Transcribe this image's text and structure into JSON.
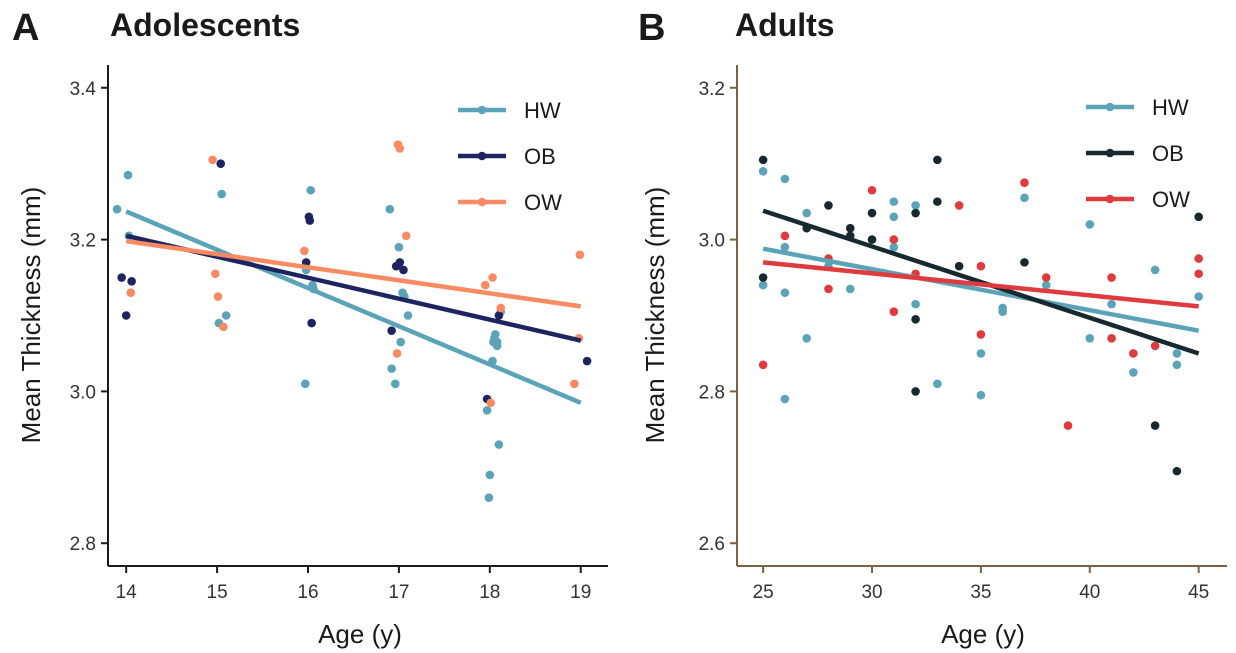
{
  "chart_data": [
    {
      "panel_letter": "A",
      "title": "Adolescents",
      "type": "scatter",
      "xlabel": "Age (y)",
      "ylabel": "Mean Thickness (mm)",
      "xlim": [
        13.8,
        19.3
      ],
      "ylim": [
        2.77,
        3.43
      ],
      "xticks": [
        "14",
        "15",
        "16",
        "17",
        "18",
        "19"
      ],
      "yticks": [
        "2.8",
        "3.0",
        "3.2",
        "3.4"
      ],
      "axis_color": "#1a1a1a",
      "grid": false,
      "legend_position": "top-right",
      "series": [
        {
          "name": "HW",
          "color": "#5BA3B8",
          "points": [
            [
              13.9,
              3.24
            ],
            [
              14.02,
              3.285
            ],
            [
              14.03,
              3.205
            ],
            [
              15.02,
              3.09
            ],
            [
              15.05,
              3.26
            ],
            [
              15.1,
              3.1
            ],
            [
              15.97,
              3.01
            ],
            [
              15.98,
              3.16
            ],
            [
              16.03,
              3.265
            ],
            [
              16.05,
              3.14
            ],
            [
              16.06,
              3.135
            ],
            [
              16.9,
              3.24
            ],
            [
              16.92,
              3.03
            ],
            [
              16.96,
              3.01
            ],
            [
              17.0,
              3.19
            ],
            [
              17.02,
              3.065
            ],
            [
              17.04,
              3.13
            ],
            [
              17.06,
              3.125
            ],
            [
              17.1,
              3.1
            ],
            [
              17.97,
              2.975
            ],
            [
              17.99,
              2.86
            ],
            [
              18.0,
              2.89
            ],
            [
              18.03,
              3.04
            ],
            [
              18.04,
              3.065
            ],
            [
              18.05,
              3.07
            ],
            [
              18.06,
              3.075
            ],
            [
              18.08,
              3.06
            ],
            [
              18.1,
              2.93
            ],
            [
              18.12,
              3.105
            ],
            [
              18.08,
              3.065
            ]
          ],
          "trend": [
            3.237,
            2.985
          ]
        },
        {
          "name": "OB",
          "color": "#1E2460",
          "points": [
            [
              13.95,
              3.15
            ],
            [
              14.0,
              3.1
            ],
            [
              14.06,
              3.145
            ],
            [
              15.04,
              3.3
            ],
            [
              15.98,
              3.17
            ],
            [
              16.01,
              3.23
            ],
            [
              16.02,
              3.225
            ],
            [
              16.04,
              3.09
            ],
            [
              16.92,
              3.08
            ],
            [
              16.97,
              3.165
            ],
            [
              17.01,
              3.17
            ],
            [
              17.05,
              3.16
            ],
            [
              17.97,
              2.99
            ],
            [
              18.1,
              3.1
            ],
            [
              19.07,
              3.04
            ]
          ],
          "trend": [
            3.205,
            3.067
          ]
        },
        {
          "name": "OW",
          "color": "#F98A62",
          "points": [
            [
              14.05,
              3.13
            ],
            [
              14.95,
              3.305
            ],
            [
              14.98,
              3.155
            ],
            [
              15.01,
              3.125
            ],
            [
              15.07,
              3.085
            ],
            [
              15.96,
              3.185
            ],
            [
              16.98,
              3.05
            ],
            [
              16.99,
              3.325
            ],
            [
              17.01,
              3.32
            ],
            [
              17.08,
              3.205
            ],
            [
              17.95,
              3.14
            ],
            [
              18.01,
              2.985
            ],
            [
              18.03,
              3.15
            ],
            [
              18.12,
              3.11
            ],
            [
              18.93,
              3.01
            ],
            [
              18.98,
              3.07
            ],
            [
              18.99,
              3.18
            ]
          ],
          "trend": [
            3.198,
            3.112
          ]
        }
      ]
    },
    {
      "panel_letter": "B",
      "title": "Adults",
      "type": "scatter",
      "xlabel": "Age (y)",
      "ylabel": "Mean Thickness (mm)",
      "xlim": [
        23.8,
        46.3
      ],
      "ylim": [
        2.57,
        3.23
      ],
      "xticks": [
        "25",
        "30",
        "35",
        "40",
        "45"
      ],
      "yticks": [
        "2.6",
        "2.8",
        "3.0",
        "3.2"
      ],
      "axis_color": "#7A6244",
      "grid": false,
      "legend_position": "top-right",
      "series": [
        {
          "name": "HW",
          "color": "#5BA3B8",
          "points": [
            [
              25,
              3.09
            ],
            [
              25,
              2.94
            ],
            [
              26,
              3.08
            ],
            [
              26,
              2.99
            ],
            [
              26,
              2.93
            ],
            [
              26,
              2.79
            ],
            [
              27,
              3.035
            ],
            [
              27,
              2.87
            ],
            [
              28,
              2.965
            ],
            [
              29,
              2.935
            ],
            [
              31,
              3.05
            ],
            [
              31,
              3.03
            ],
            [
              31,
              2.99
            ],
            [
              32,
              3.045
            ],
            [
              32,
              2.915
            ],
            [
              33,
              2.81
            ],
            [
              35,
              2.85
            ],
            [
              35,
              2.795
            ],
            [
              36,
              2.91
            ],
            [
              36,
              2.905
            ],
            [
              37,
              3.055
            ],
            [
              38,
              2.94
            ],
            [
              40,
              3.02
            ],
            [
              40,
              2.87
            ],
            [
              41,
              2.915
            ],
            [
              42,
              2.825
            ],
            [
              43,
              2.96
            ],
            [
              44,
              2.85
            ],
            [
              44,
              2.835
            ],
            [
              45,
              2.925
            ]
          ],
          "trend": [
            2.988,
            2.88
          ]
        },
        {
          "name": "OB",
          "color": "#17292F",
          "points": [
            [
              25,
              3.105
            ],
            [
              25,
              2.95
            ],
            [
              27,
              3.015
            ],
            [
              28,
              3.045
            ],
            [
              29,
              3.015
            ],
            [
              29,
              3.005
            ],
            [
              30,
              3.035
            ],
            [
              30,
              3.0
            ],
            [
              32,
              3.035
            ],
            [
              32,
              2.895
            ],
            [
              32,
              2.8
            ],
            [
              33,
              3.105
            ],
            [
              33,
              3.05
            ],
            [
              34,
              2.965
            ],
            [
              37,
              2.97
            ],
            [
              43,
              2.755
            ],
            [
              44,
              2.695
            ],
            [
              45,
              3.03
            ]
          ],
          "trend": [
            3.038,
            2.85
          ]
        },
        {
          "name": "OW",
          "color": "#E0393E",
          "points": [
            [
              25,
              2.835
            ],
            [
              26,
              3.005
            ],
            [
              28,
              2.975
            ],
            [
              28,
              2.935
            ],
            [
              30,
              3.065
            ],
            [
              31,
              3.0
            ],
            [
              31,
              2.905
            ],
            [
              32,
              2.955
            ],
            [
              34,
              3.045
            ],
            [
              35,
              2.965
            ],
            [
              35,
              2.875
            ],
            [
              37,
              3.075
            ],
            [
              38,
              2.95
            ],
            [
              39,
              2.755
            ],
            [
              41,
              2.95
            ],
            [
              41,
              2.87
            ],
            [
              42,
              2.85
            ],
            [
              43,
              2.86
            ],
            [
              45,
              2.975
            ],
            [
              45,
              2.955
            ]
          ],
          "trend": [
            2.97,
            2.912
          ]
        }
      ]
    }
  ]
}
